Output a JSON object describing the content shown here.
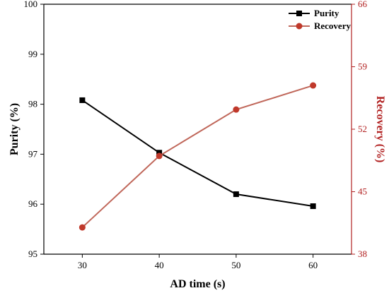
{
  "chart_data": {
    "type": "line",
    "x": [
      30,
      40,
      50,
      60
    ],
    "xlabel": "AD time (s)",
    "xlim": [
      25,
      65
    ],
    "xticks": [
      30,
      40,
      50,
      60
    ],
    "series": [
      {
        "name": "Purity",
        "axis": "left",
        "values": [
          98.08,
          97.03,
          96.2,
          95.96
        ],
        "color": "#000000",
        "marker": "square"
      },
      {
        "name": "Recovery",
        "axis": "right",
        "values": [
          41.0,
          49.0,
          54.2,
          56.9
        ],
        "color": "#c0392b",
        "line_color": "#c0675a",
        "marker": "circle"
      }
    ],
    "y_left": {
      "label": "Purity (%)",
      "lim": [
        95,
        100
      ],
      "ticks": [
        95,
        96,
        97,
        98,
        99,
        100
      ],
      "color": "#000000"
    },
    "y_right": {
      "label": "Recovery (%)",
      "lim": [
        38,
        66
      ],
      "ticks": [
        38,
        45,
        52,
        59,
        66
      ],
      "color": "#b22222"
    },
    "legend_position": "top-right",
    "grid": false
  }
}
